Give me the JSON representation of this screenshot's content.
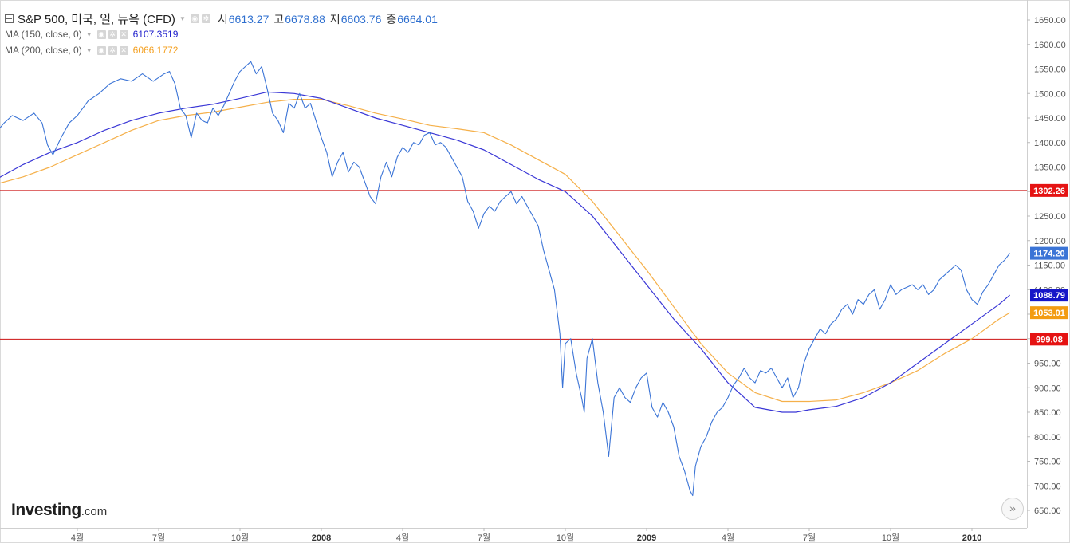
{
  "header": {
    "symbol": "S&P 500, 미국, 일, 뉴욕 (CFD)",
    "open_label": "시",
    "open": "6613.27",
    "high_label": "고",
    "high": "6678.88",
    "low_label": "저",
    "low": "6603.76",
    "close_label": "종",
    "close": "6664.01"
  },
  "indicators": [
    {
      "name": "MA (150, close, 0)",
      "value": "6107.3519",
      "color": "#1f1fcc"
    },
    {
      "name": "MA (200, close, 0)",
      "value": "6066.1772",
      "color": "#f4a021"
    }
  ],
  "logo": {
    "brand": "Investing",
    "suffix": ".com"
  },
  "nav_button": {
    "icon": "double-chevron-right-icon",
    "glyph": "»"
  },
  "colors": {
    "price_line": "#3b74d6",
    "ma150": "#3a37d6",
    "ma200": "#f5b04a",
    "hline": "#cc1111",
    "badge_red": "#e51313",
    "badge_price": "#3b74d6",
    "badge_ma150": "#1616c8",
    "badge_ma200": "#f39c12"
  },
  "chart_data": {
    "type": "line",
    "y_range": [
      620,
      1680
    ],
    "y_ticks": [
      650,
      700,
      750,
      800,
      850,
      900,
      950,
      1000,
      1050,
      1100,
      1150,
      1200,
      1250,
      1300,
      1350,
      1400,
      1450,
      1500,
      1550,
      1600,
      1650
    ],
    "y_tick_labels": [
      "650.00",
      "700.00",
      "750.00",
      "800.00",
      "850.00",
      "900.00",
      "950.00",
      "1000.00",
      "1050.00",
      "1100.00",
      "1150.00",
      "1200.00",
      "1250.00",
      "1300.00",
      "1350.00",
      "1400.00",
      "1450.00",
      "1500.00",
      "1550.00",
      "1600.00",
      "1650.00"
    ],
    "x_range": [
      0,
      36.5
    ],
    "x_ticks": [
      {
        "x": 3,
        "label": "4월",
        "bold": false
      },
      {
        "x": 6,
        "label": "7월",
        "bold": false
      },
      {
        "x": 9,
        "label": "10월",
        "bold": false
      },
      {
        "x": 12,
        "label": "2008",
        "bold": true
      },
      {
        "x": 15,
        "label": "4월",
        "bold": false
      },
      {
        "x": 18,
        "label": "7월",
        "bold": false
      },
      {
        "x": 21,
        "label": "10월",
        "bold": false
      },
      {
        "x": 24,
        "label": "2009",
        "bold": true
      },
      {
        "x": 27,
        "label": "4월",
        "bold": false
      },
      {
        "x": 30,
        "label": "7월",
        "bold": false
      },
      {
        "x": 33,
        "label": "10월",
        "bold": false
      },
      {
        "x": 36,
        "label": "2010",
        "bold": true
      }
    ],
    "series": [
      {
        "name": "S&P 500",
        "key": "price",
        "points": [
          [
            0.0,
            1420
          ],
          [
            0.3,
            1440
          ],
          [
            0.6,
            1455
          ],
          [
            1.0,
            1445
          ],
          [
            1.4,
            1460
          ],
          [
            1.7,
            1440
          ],
          [
            1.9,
            1395
          ],
          [
            2.1,
            1375
          ],
          [
            2.4,
            1410
          ],
          [
            2.7,
            1440
          ],
          [
            3.0,
            1455
          ],
          [
            3.4,
            1485
          ],
          [
            3.8,
            1500
          ],
          [
            4.2,
            1520
          ],
          [
            4.6,
            1530
          ],
          [
            5.0,
            1525
          ],
          [
            5.4,
            1540
          ],
          [
            5.8,
            1525
          ],
          [
            6.2,
            1540
          ],
          [
            6.4,
            1545
          ],
          [
            6.6,
            1520
          ],
          [
            6.8,
            1470
          ],
          [
            7.0,
            1455
          ],
          [
            7.2,
            1410
          ],
          [
            7.4,
            1460
          ],
          [
            7.6,
            1445
          ],
          [
            7.8,
            1440
          ],
          [
            8.0,
            1470
          ],
          [
            8.2,
            1455
          ],
          [
            8.4,
            1475
          ],
          [
            8.6,
            1500
          ],
          [
            8.8,
            1525
          ],
          [
            9.0,
            1545
          ],
          [
            9.2,
            1555
          ],
          [
            9.4,
            1565
          ],
          [
            9.6,
            1540
          ],
          [
            9.8,
            1555
          ],
          [
            10.0,
            1510
          ],
          [
            10.2,
            1460
          ],
          [
            10.4,
            1445
          ],
          [
            10.6,
            1420
          ],
          [
            10.8,
            1480
          ],
          [
            11.0,
            1470
          ],
          [
            11.2,
            1500
          ],
          [
            11.4,
            1470
          ],
          [
            11.6,
            1480
          ],
          [
            11.8,
            1445
          ],
          [
            12.0,
            1410
          ],
          [
            12.2,
            1380
          ],
          [
            12.4,
            1330
          ],
          [
            12.6,
            1360
          ],
          [
            12.8,
            1380
          ],
          [
            13.0,
            1340
          ],
          [
            13.2,
            1360
          ],
          [
            13.4,
            1350
          ],
          [
            13.6,
            1320
          ],
          [
            13.8,
            1290
          ],
          [
            14.0,
            1275
          ],
          [
            14.2,
            1330
          ],
          [
            14.4,
            1360
          ],
          [
            14.6,
            1330
          ],
          [
            14.8,
            1370
          ],
          [
            15.0,
            1390
          ],
          [
            15.2,
            1380
          ],
          [
            15.4,
            1400
          ],
          [
            15.6,
            1395
          ],
          [
            15.8,
            1415
          ],
          [
            16.0,
            1420
          ],
          [
            16.2,
            1395
          ],
          [
            16.4,
            1400
          ],
          [
            16.6,
            1390
          ],
          [
            16.8,
            1370
          ],
          [
            17.0,
            1350
          ],
          [
            17.2,
            1330
          ],
          [
            17.4,
            1280
          ],
          [
            17.6,
            1260
          ],
          [
            17.8,
            1225
          ],
          [
            18.0,
            1255
          ],
          [
            18.2,
            1270
          ],
          [
            18.4,
            1260
          ],
          [
            18.6,
            1280
          ],
          [
            18.8,
            1290
          ],
          [
            19.0,
            1300
          ],
          [
            19.2,
            1275
          ],
          [
            19.4,
            1290
          ],
          [
            19.6,
            1270
          ],
          [
            19.8,
            1250
          ],
          [
            20.0,
            1230
          ],
          [
            20.2,
            1180
          ],
          [
            20.4,
            1140
          ],
          [
            20.6,
            1100
          ],
          [
            20.8,
            1010
          ],
          [
            20.9,
            900
          ],
          [
            21.0,
            990
          ],
          [
            21.2,
            1000
          ],
          [
            21.4,
            930
          ],
          [
            21.6,
            880
          ],
          [
            21.7,
            850
          ],
          [
            21.8,
            960
          ],
          [
            22.0,
            1000
          ],
          [
            22.2,
            910
          ],
          [
            22.4,
            850
          ],
          [
            22.6,
            760
          ],
          [
            22.8,
            880
          ],
          [
            23.0,
            900
          ],
          [
            23.2,
            880
          ],
          [
            23.4,
            870
          ],
          [
            23.6,
            900
          ],
          [
            23.8,
            920
          ],
          [
            24.0,
            930
          ],
          [
            24.2,
            860
          ],
          [
            24.4,
            840
          ],
          [
            24.6,
            870
          ],
          [
            24.8,
            850
          ],
          [
            25.0,
            820
          ],
          [
            25.2,
            760
          ],
          [
            25.4,
            730
          ],
          [
            25.6,
            690
          ],
          [
            25.7,
            680
          ],
          [
            25.8,
            740
          ],
          [
            26.0,
            780
          ],
          [
            26.2,
            800
          ],
          [
            26.4,
            830
          ],
          [
            26.6,
            850
          ],
          [
            26.8,
            860
          ],
          [
            27.0,
            880
          ],
          [
            27.2,
            905
          ],
          [
            27.4,
            920
          ],
          [
            27.6,
            940
          ],
          [
            27.8,
            920
          ],
          [
            28.0,
            910
          ],
          [
            28.2,
            935
          ],
          [
            28.4,
            930
          ],
          [
            28.6,
            940
          ],
          [
            28.8,
            920
          ],
          [
            29.0,
            900
          ],
          [
            29.2,
            920
          ],
          [
            29.4,
            880
          ],
          [
            29.6,
            900
          ],
          [
            29.8,
            950
          ],
          [
            30.0,
            980
          ],
          [
            30.2,
            1000
          ],
          [
            30.4,
            1020
          ],
          [
            30.6,
            1010
          ],
          [
            30.8,
            1030
          ],
          [
            31.0,
            1040
          ],
          [
            31.2,
            1060
          ],
          [
            31.4,
            1070
          ],
          [
            31.6,
            1050
          ],
          [
            31.8,
            1080
          ],
          [
            32.0,
            1070
          ],
          [
            32.2,
            1090
          ],
          [
            32.4,
            1100
          ],
          [
            32.6,
            1060
          ],
          [
            32.8,
            1080
          ],
          [
            33.0,
            1110
          ],
          [
            33.2,
            1090
          ],
          [
            33.4,
            1100
          ],
          [
            33.6,
            1105
          ],
          [
            33.8,
            1110
          ],
          [
            34.0,
            1100
          ],
          [
            34.2,
            1110
          ],
          [
            34.4,
            1090
          ],
          [
            34.6,
            1100
          ],
          [
            34.8,
            1120
          ],
          [
            35.0,
            1130
          ],
          [
            35.2,
            1140
          ],
          [
            35.4,
            1150
          ],
          [
            35.6,
            1140
          ],
          [
            35.8,
            1100
          ],
          [
            36.0,
            1080
          ],
          [
            36.2,
            1070
          ],
          [
            36.4,
            1095
          ],
          [
            36.6,
            1110
          ],
          [
            36.8,
            1130
          ],
          [
            37.0,
            1150
          ],
          [
            37.2,
            1160
          ],
          [
            37.4,
            1174.2
          ]
        ]
      },
      {
        "name": "MA (150, close, 0)",
        "key": "ma150",
        "points": [
          [
            0.0,
            1325
          ],
          [
            1.0,
            1355
          ],
          [
            2.0,
            1380
          ],
          [
            3.0,
            1400
          ],
          [
            4.0,
            1425
          ],
          [
            5.0,
            1445
          ],
          [
            6.0,
            1460
          ],
          [
            7.0,
            1470
          ],
          [
            8.0,
            1478
          ],
          [
            9.0,
            1490
          ],
          [
            10.0,
            1503
          ],
          [
            11.0,
            1500
          ],
          [
            12.0,
            1490
          ],
          [
            13.0,
            1470
          ],
          [
            14.0,
            1450
          ],
          [
            15.0,
            1435
          ],
          [
            16.0,
            1420
          ],
          [
            17.0,
            1405
          ],
          [
            18.0,
            1385
          ],
          [
            19.0,
            1355
          ],
          [
            20.0,
            1325
          ],
          [
            21.0,
            1300
          ],
          [
            22.0,
            1250
          ],
          [
            23.0,
            1180
          ],
          [
            24.0,
            1110
          ],
          [
            25.0,
            1040
          ],
          [
            26.0,
            980
          ],
          [
            27.0,
            910
          ],
          [
            28.0,
            860
          ],
          [
            29.0,
            850
          ],
          [
            29.5,
            850
          ],
          [
            30.0,
            855
          ],
          [
            31.0,
            862
          ],
          [
            32.0,
            880
          ],
          [
            33.0,
            910
          ],
          [
            34.0,
            950
          ],
          [
            35.0,
            990
          ],
          [
            36.0,
            1030
          ],
          [
            37.0,
            1070
          ],
          [
            37.4,
            1088.79
          ]
        ]
      },
      {
        "name": "MA (200, close, 0)",
        "key": "ma200",
        "points": [
          [
            0.0,
            1315
          ],
          [
            1.0,
            1330
          ],
          [
            2.0,
            1350
          ],
          [
            3.0,
            1375
          ],
          [
            4.0,
            1400
          ],
          [
            5.0,
            1425
          ],
          [
            6.0,
            1445
          ],
          [
            7.0,
            1455
          ],
          [
            8.0,
            1462
          ],
          [
            9.0,
            1472
          ],
          [
            10.0,
            1482
          ],
          [
            11.0,
            1488
          ],
          [
            12.0,
            1488
          ],
          [
            13.0,
            1475
          ],
          [
            14.0,
            1460
          ],
          [
            15.0,
            1448
          ],
          [
            16.0,
            1435
          ],
          [
            17.0,
            1428
          ],
          [
            18.0,
            1420
          ],
          [
            19.0,
            1395
          ],
          [
            20.0,
            1365
          ],
          [
            21.0,
            1335
          ],
          [
            22.0,
            1280
          ],
          [
            23.0,
            1210
          ],
          [
            24.0,
            1140
          ],
          [
            25.0,
            1065
          ],
          [
            26.0,
            990
          ],
          [
            27.0,
            930
          ],
          [
            28.0,
            890
          ],
          [
            29.0,
            872
          ],
          [
            30.0,
            872
          ],
          [
            31.0,
            875
          ],
          [
            32.0,
            890
          ],
          [
            33.0,
            910
          ],
          [
            34.0,
            935
          ],
          [
            35.0,
            970
          ],
          [
            36.0,
            1000
          ],
          [
            37.0,
            1040
          ],
          [
            37.4,
            1053.01
          ]
        ]
      }
    ],
    "horizontal_lines": [
      {
        "value": 1302.26,
        "label": "1302.26"
      },
      {
        "value": 999.08,
        "label": "999.08"
      }
    ],
    "price_badges": [
      {
        "value": 1174.2,
        "label": "1174.20",
        "key": "price"
      },
      {
        "value": 1088.79,
        "label": "1088.79",
        "key": "ma150"
      },
      {
        "value": 1053.01,
        "label": "1053.01",
        "key": "ma200"
      }
    ],
    "grid": false
  }
}
